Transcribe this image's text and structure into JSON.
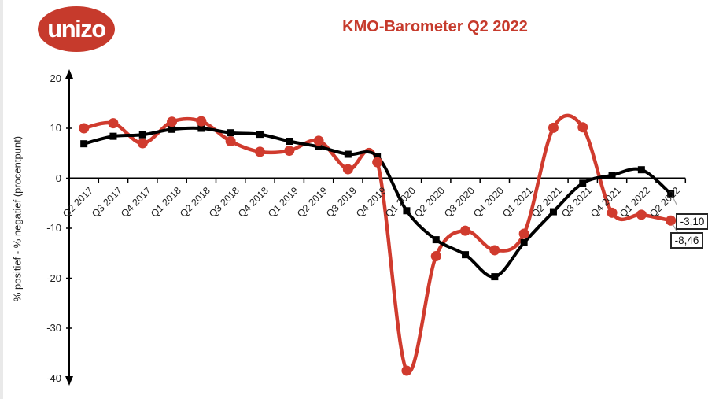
{
  "header": {
    "logo_text": "unizo",
    "title": "KMO-Barometer Q2 2022"
  },
  "colors": {
    "brand_red": "#c63a2c",
    "line_red": "#d03b2e",
    "line_black": "#000000",
    "leader_gray": "#a6a6a6",
    "axis_black": "#000000"
  },
  "chart_data": {
    "type": "line",
    "title": "KMO-Barometer Q2 2022",
    "xlabel": "",
    "ylabel": "% positief - % negatief (procentpunt)",
    "ylim": [
      -40,
      20
    ],
    "yticks": [
      20,
      10,
      0,
      -10,
      -20,
      -30,
      -40
    ],
    "grid": false,
    "legend": "none",
    "line_style": "smoothed",
    "categories": [
      "Q2 2017",
      "Q3 2017",
      "Q4 2017",
      "Q1 2018",
      "Q2 2018",
      "Q3 2018",
      "Q4 2018",
      "Q1 2019",
      "Q2 2019",
      "Q3 2019",
      "Q4 2019",
      "Q1 2020",
      "Q2 2020",
      "Q3 2020",
      "Q4 2020",
      "Q1 2021",
      "Q2 2021",
      "Q3 2021",
      "Q4 2021",
      "Q1 2022",
      "Q2 2022"
    ],
    "series": [
      {
        "id": "red-series",
        "color": "#d03b2e",
        "marker": "circle",
        "values": [
          10.0,
          11.0,
          7.0,
          11.3,
          11.4,
          7.4,
          5.3,
          5.5,
          7.5,
          1.8,
          3.2,
          -38.5,
          -15.6,
          -10.5,
          -14.4,
          -11.1,
          10.1,
          10.2,
          -6.9,
          -7.3,
          -8.46
        ]
      },
      {
        "id": "black-series",
        "color": "#000000",
        "marker": "square",
        "values": [
          6.9,
          8.4,
          8.7,
          9.8,
          10.0,
          9.1,
          8.8,
          7.4,
          6.3,
          4.8,
          4.4,
          -6.5,
          -12.3,
          -15.3,
          -19.7,
          -12.9,
          -6.7,
          -1.0,
          0.6,
          1.7,
          -3.1
        ]
      }
    ],
    "annotations": [
      {
        "name": "callout-black-last-value",
        "label": "-3,10",
        "series": 1,
        "index": 20
      },
      {
        "name": "callout-red-last-value",
        "label": "-8,46",
        "series": 0,
        "index": 20
      }
    ]
  }
}
